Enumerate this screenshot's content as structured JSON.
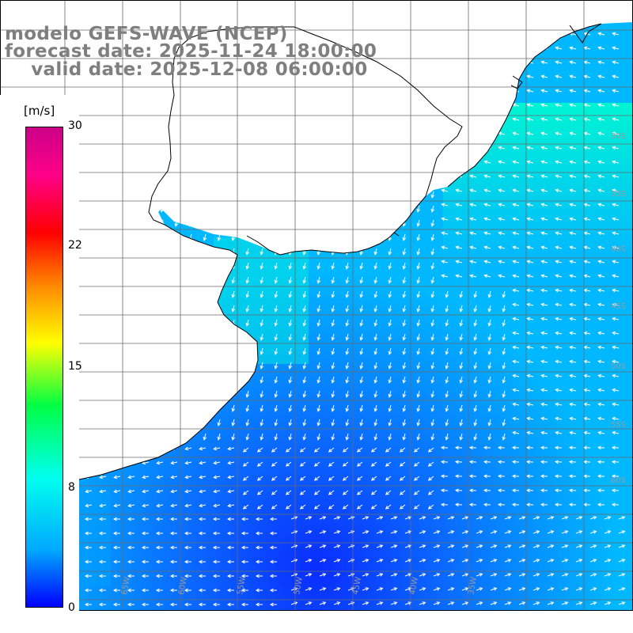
{
  "title": {
    "line1": "modelo GEFS-WAVE (NCEP)",
    "line2": "forecast date: 2025-11-24 18:00:00",
    "line3": "    valid date: 2025-12-08 06:00:00"
  },
  "colorbar": {
    "unit": "[m/s]",
    "ticks": [
      "30",
      "22",
      "15",
      "8",
      "0"
    ],
    "tick_values": [
      30,
      22,
      15,
      8,
      0
    ],
    "min": 0,
    "max": 30
  },
  "map": {
    "lon_labels": [
      "65W",
      "60W",
      "55W",
      "50W",
      "45W",
      "40W",
      "35W"
    ],
    "lat_labels": [
      "30S",
      "35S",
      "40S",
      "45S",
      "50S",
      "55S",
      "60S"
    ],
    "ocean_colors": {
      "low": "#1050ff",
      "mid": "#00c8ff",
      "high": "#00ffcc"
    },
    "land_color": "#ffffff",
    "grid_color": "#555555",
    "arrow_color": "#ffffff"
  }
}
